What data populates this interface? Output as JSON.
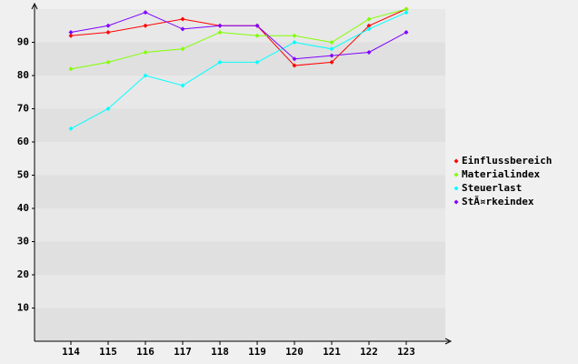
{
  "chart_data": {
    "type": "line",
    "categories": [
      "114",
      "115",
      "116",
      "117",
      "118",
      "119",
      "120",
      "121",
      "122",
      "123"
    ],
    "series": [
      {
        "name": "Einflussbereich",
        "color": "#ff0000",
        "values": [
          92,
          93,
          95,
          97,
          95,
          95,
          83,
          84,
          95,
          100
        ]
      },
      {
        "name": "Materialindex",
        "color": "#80ff00",
        "values": [
          82,
          84,
          87,
          88,
          93,
          92,
          92,
          90,
          97,
          100
        ]
      },
      {
        "name": "Steuerlast",
        "color": "#00ffff",
        "values": [
          64,
          70,
          80,
          77,
          84,
          84,
          90,
          88,
          94,
          99
        ]
      },
      {
        "name": "StÃ¤rkeindex",
        "color": "#8000ff",
        "values": [
          93,
          95,
          99,
          94,
          95,
          95,
          85,
          86,
          87,
          93
        ]
      }
    ],
    "ylim": [
      0,
      100
    ],
    "yticks": [
      10,
      20,
      30,
      40,
      50,
      60,
      70,
      80,
      90
    ],
    "grid": true,
    "legend": "right"
  }
}
